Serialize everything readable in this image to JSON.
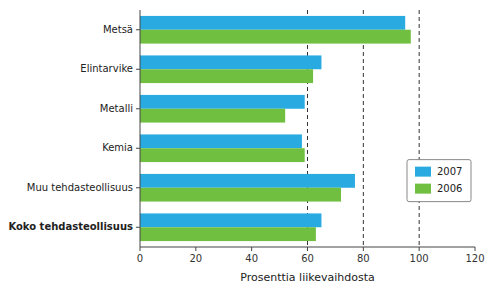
{
  "chart_data": {
    "type": "bar",
    "orientation": "horizontal",
    "categories": [
      "Metsä",
      "Elintarvike",
      "Metalli",
      "Kemia",
      "Muu tehdasteollisuus",
      "Koko tehdasteollisuus"
    ],
    "series": [
      {
        "name": "2007",
        "color": "#29ABE2",
        "values": [
          95,
          65,
          59,
          58,
          77,
          65
        ]
      },
      {
        "name": "2006",
        "color": "#70BF41",
        "values": [
          97,
          62,
          52,
          59,
          72,
          63
        ]
      }
    ],
    "xlabel": "Prosenttia liikevaihdosta",
    "xlim": [
      0,
      120
    ],
    "xticks": [
      0,
      20,
      40,
      60,
      80,
      100,
      120
    ],
    "reference_lines": [
      60,
      80,
      100
    ],
    "grid": false,
    "legend": "right"
  }
}
